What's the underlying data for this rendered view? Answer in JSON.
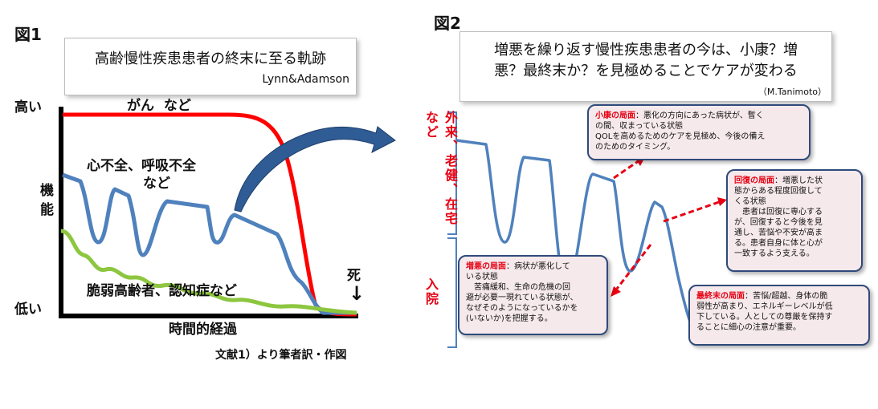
{
  "fig1": {
    "label": "図1",
    "title": "高齢慢性疾患患者の終末に至る軌跡",
    "author": "Lynn&Adamson",
    "y_high": "高い",
    "y_low": "低い",
    "y_axis": "機\n能",
    "x_axis": "時間的経過",
    "death": "死",
    "death_arrow": "↓",
    "source": "文献1）より筆者訳・作図",
    "series": {
      "cancer": "がん  など",
      "organ_failure_1": "心不全、呼吸不全",
      "organ_failure_2": "など",
      "frailty": "脆弱高齢者、認知症など"
    },
    "colors": {
      "cancer": "#ff0000",
      "organ": "#4f81bd",
      "frailty": "#8dc63f",
      "arrow": "#2f5c95"
    }
  },
  "fig2": {
    "label": "図2",
    "title_line1": "増悪を繰り返す慢性疾患患者の今は、小康？増",
    "title_line2": "悪？最終末か？を見極めることでケアが変わる",
    "author": "（M.Tanimoto）",
    "side_outpatient": "外来、老健、在宅など",
    "side_inpatient": "入院",
    "callouts": {
      "remission": {
        "head": "小康の局面",
        "lines": [
          "：悪化の方向にあった病状が、暫く",
          "の間、収まっている状態",
          "QOLを高めるためのケアを見極め、今後の備え",
          "のためのタイミング。"
        ]
      },
      "recovery": {
        "head": "回復の局面",
        "lines": [
          "：増悪した状",
          "態からある程度回復して",
          "くる状態",
          "　患者は回復に専心する",
          "が、回復すると今後を見",
          "通し、苦悩や不安が高ま",
          "る。患者自身に体と心が",
          "一致するよう支える。"
        ]
      },
      "exacerbation": {
        "head": "増悪の局面",
        "lines": [
          "：病状が悪化して",
          "いる状態",
          "　苦痛緩和、生命の危機の回",
          "避が必要一現れている状態が、",
          "なぜそのようになっているかを",
          "(いないか)を把握する。"
        ]
      },
      "terminal": {
        "head": "最終末の局面",
        "lines": [
          "：苦悩/超越、身体の脆",
          "弱性が高まり、エネルギーレベルが低",
          "下している。人としての尊厳を保持す",
          "ることに細心の注意が重要。"
        ]
      }
    }
  }
}
